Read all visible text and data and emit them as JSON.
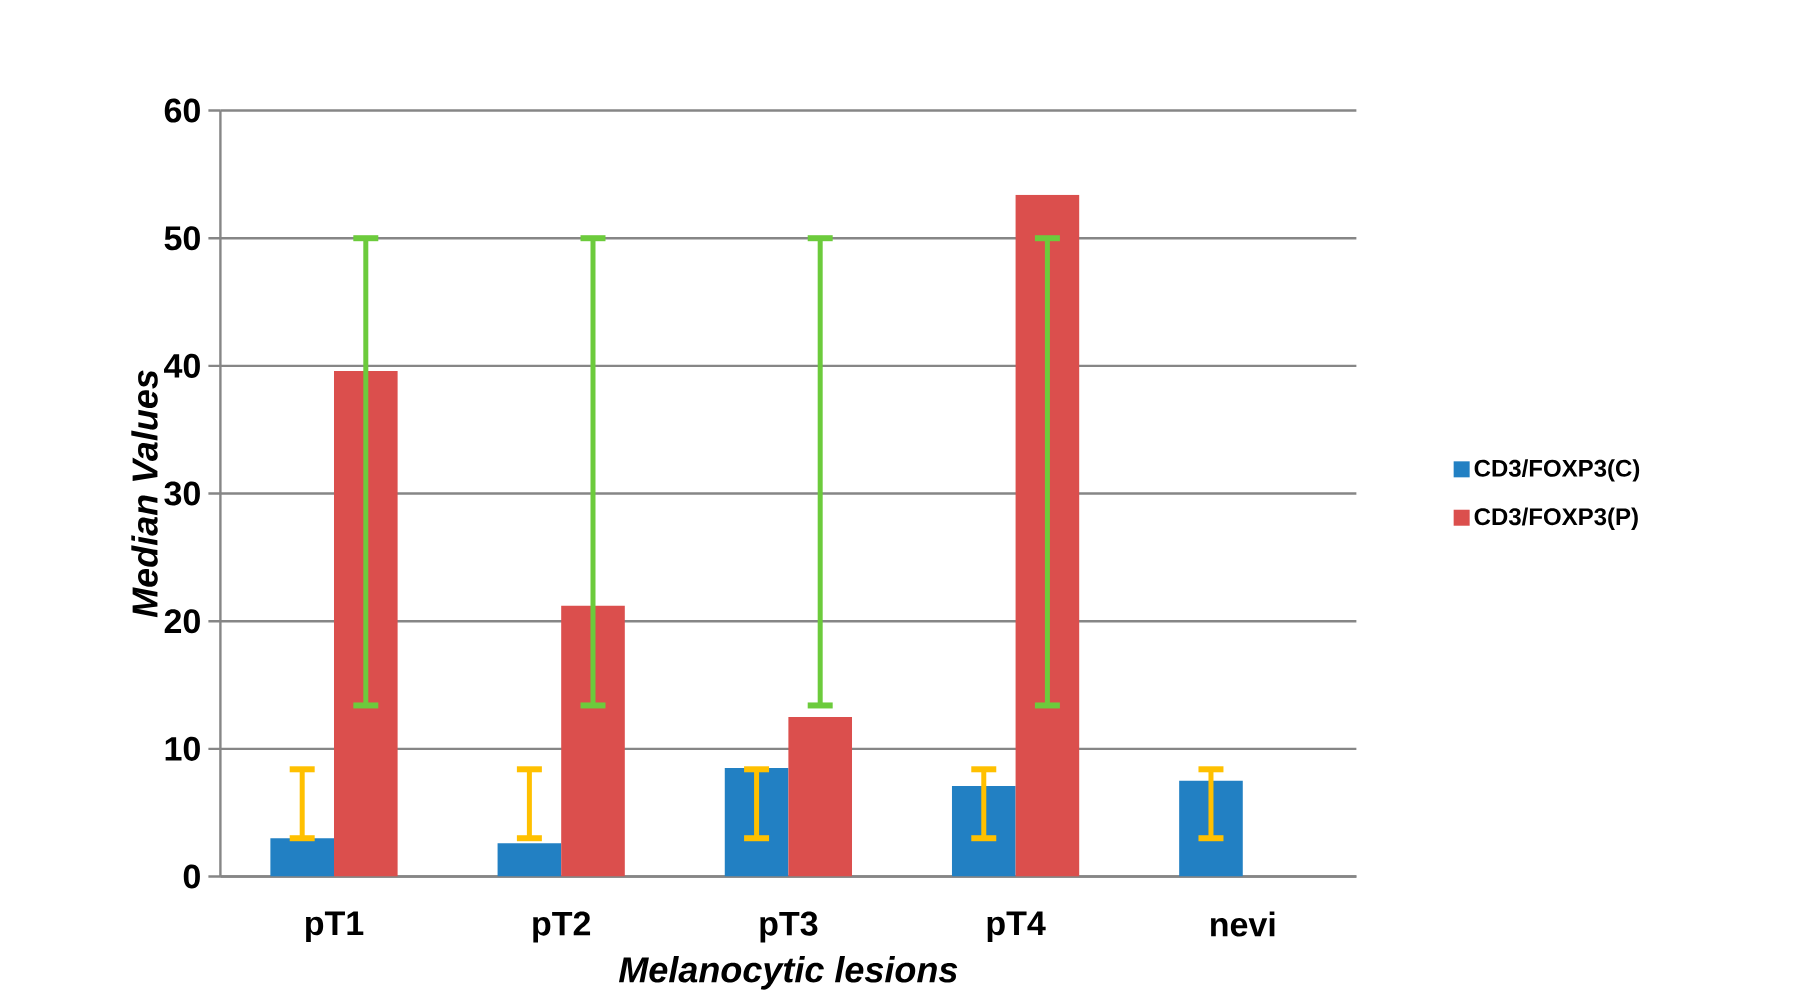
{
  "chart_data": {
    "type": "bar",
    "xlabel": "Melanocytic lesions",
    "ylabel": "Median Values",
    "categories": [
      "pT1",
      "pT2",
      "pT3",
      "pT4",
      "nevi"
    ],
    "series": [
      {
        "name": "CD3/FOXP3(C)",
        "color": "#2280c3",
        "values": [
          3.0,
          2.6,
          8.5,
          7.1,
          7.5
        ],
        "errors": [
          [
            3.0,
            8.4
          ],
          [
            3.0,
            8.4
          ],
          [
            3.0,
            8.4
          ],
          [
            3.0,
            8.4
          ],
          [
            3.0,
            8.4
          ]
        ]
      },
      {
        "name": "CD3/FOXP3(P)",
        "color": "#db4f4d",
        "values": [
          39.6,
          21.2,
          12.5,
          53.4,
          null
        ],
        "errors": [
          [
            13.4,
            50
          ],
          [
            13.4,
            50
          ],
          [
            13.4,
            50
          ],
          [
            13.4,
            50
          ],
          null
        ]
      }
    ],
    "ylim": [
      0,
      60
    ],
    "yticks": [
      0,
      10,
      20,
      30,
      40,
      50,
      60
    ],
    "grid": "y",
    "legend": "right"
  }
}
